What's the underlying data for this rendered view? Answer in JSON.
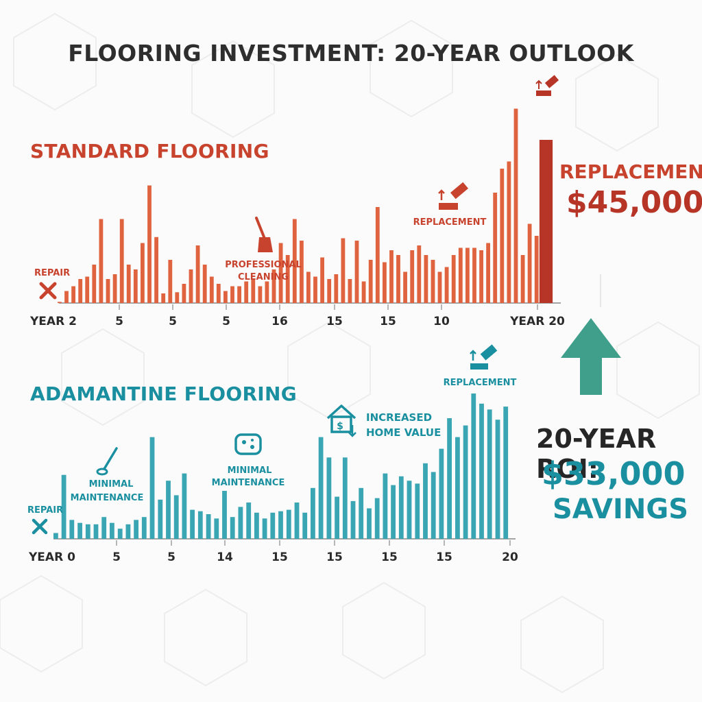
{
  "title": "FLOORING INVESTMENT: 20-YEAR OUTLOOK",
  "colors": {
    "standard": "#e0633f",
    "standard_dark": "#b73527",
    "adamantine": "#3aa6b3",
    "adamantine_dark": "#1a8f9f",
    "arrow": "#3f9f8a"
  },
  "chart_data": [
    {
      "type": "bar",
      "title": "STANDARD FLOORING",
      "x_tick_labels": [
        "YEAR 2",
        "5",
        "5",
        "5",
        "16",
        "15",
        "15",
        "10",
        "YEAR 20"
      ],
      "values": [
        1,
        10,
        14,
        20,
        22,
        32,
        70,
        20,
        24,
        70,
        32,
        28,
        50,
        98,
        55,
        8,
        36,
        9,
        16,
        28,
        48,
        32,
        22,
        16,
        10,
        14,
        14,
        18,
        20,
        14,
        18,
        28,
        50,
        40,
        70,
        52,
        26,
        22,
        38,
        20,
        24,
        54,
        20,
        52,
        18,
        36,
        80,
        34,
        44,
        40,
        26,
        44,
        48,
        40,
        36,
        26,
        30,
        40,
        46,
        46,
        46,
        44,
        50,
        92,
        112,
        118,
        162,
        40,
        66,
        56,
        136
      ],
      "highlight_index": 70,
      "annotations": [
        {
          "text": "REPAIR",
          "icon": "wrench-screwdriver-icon"
        },
        {
          "text": "PROFESSIONAL",
          "text2": "CLEANING",
          "icon": "broom-icon"
        },
        {
          "text": "REPLACEMENT",
          "icon": "tile-replacement-icon"
        },
        {
          "text": "",
          "icon": "tile-replacement-icon"
        }
      ],
      "callout": {
        "label": "REPLACEMENT",
        "value": "$45,000"
      }
    },
    {
      "type": "bar",
      "title": "ADAMANTINE FLOORING",
      "x_tick_labels": [
        "YEAR 0",
        "5",
        "5",
        "14",
        "15",
        "15",
        "15",
        "15",
        "20"
      ],
      "values": [
        8,
        88,
        26,
        22,
        20,
        20,
        30,
        22,
        14,
        20,
        26,
        30,
        140,
        54,
        80,
        60,
        90,
        40,
        38,
        34,
        28,
        66,
        30,
        44,
        50,
        36,
        28,
        36,
        38,
        40,
        50,
        36,
        70,
        140,
        112,
        58,
        112,
        52,
        70,
        42,
        56,
        90,
        74,
        86,
        80,
        76,
        104,
        92,
        124,
        166,
        140,
        156,
        200,
        186,
        178,
        164,
        182
      ],
      "annotations": [
        {
          "text": "REPAIR",
          "icon": "wrench-screwdriver-icon"
        },
        {
          "text": "MINIMAL",
          "text2": "MAINTENANCE",
          "icon": "mop-icon"
        },
        {
          "text": "MINIMAL",
          "text2": "MAINTENANCE",
          "icon": "sponge-icon"
        },
        {
          "text": "INCREASED",
          "text2": "HOME VALUE",
          "icon": "house-dollar-icon"
        },
        {
          "text": "REPLACEMENT",
          "icon": "tile-replacement-icon"
        }
      ]
    }
  ],
  "roi": {
    "label": "20-YEAR ROI:",
    "value": "$33,000",
    "savings": "SAVINGS",
    "icon": "up-arrow-icon"
  }
}
